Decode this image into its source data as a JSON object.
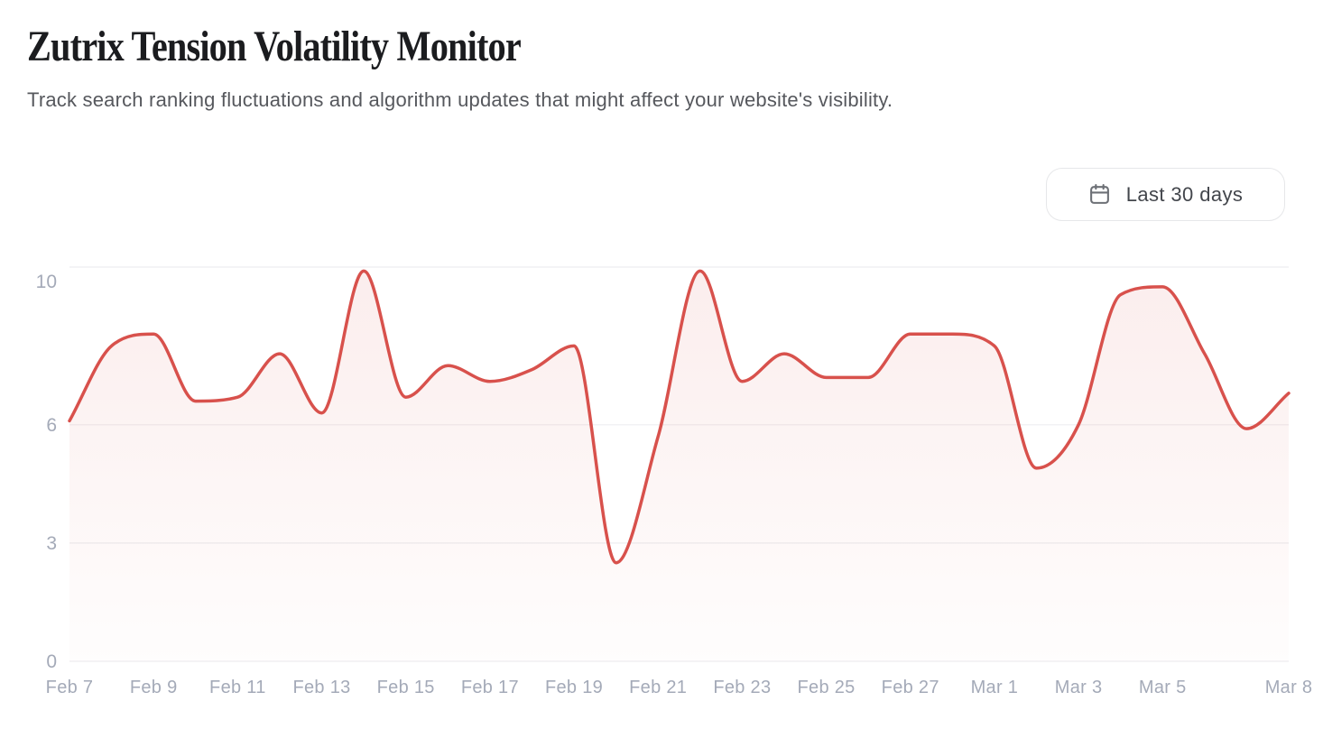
{
  "page": {
    "title": "Zutrix Tension Volatility Monitor",
    "subtitle": "Track search ranking fluctuations and algorithm updates that might affect your website's visibility."
  },
  "controls": {
    "date_range_label": "Last 30 days",
    "calendar_icon": "calendar-icon"
  },
  "chart_data": {
    "type": "line",
    "title": "",
    "x": [
      "Feb 7",
      "Feb 8",
      "Feb 9",
      "Feb 10",
      "Feb 11",
      "Feb 12",
      "Feb 13",
      "Feb 14",
      "Feb 15",
      "Feb 16",
      "Feb 17",
      "Feb 18",
      "Feb 19",
      "Feb 20",
      "Feb 21",
      "Feb 22",
      "Feb 23",
      "Feb 24",
      "Feb 25",
      "Feb 26",
      "Feb 27",
      "Feb 28",
      "Mar 1",
      "Mar 2",
      "Mar 3",
      "Mar 4",
      "Mar 5",
      "Mar 6",
      "Mar 7",
      "Mar 8"
    ],
    "series": [
      {
        "name": "Volatility",
        "values": [
          6.1,
          8.0,
          8.3,
          6.6,
          6.7,
          7.8,
          6.3,
          9.9,
          6.7,
          7.5,
          7.1,
          7.4,
          8.0,
          2.5,
          5.7,
          9.9,
          7.1,
          7.8,
          7.2,
          7.2,
          8.3,
          8.3,
          8.0,
          4.9,
          6.0,
          9.3,
          9.5,
          7.8,
          5.9,
          6.8
        ]
      }
    ],
    "x_tick_labels": [
      "Feb 7",
      "Feb 9",
      "Feb 11",
      "Feb 13",
      "Feb 15",
      "Feb 17",
      "Feb 19",
      "Feb 21",
      "Feb 23",
      "Feb 25",
      "Feb 27",
      "Mar 1",
      "Mar 3",
      "Mar 5",
      "Mar 8"
    ],
    "x_tick_indices": [
      0,
      2,
      4,
      6,
      8,
      10,
      12,
      14,
      16,
      18,
      20,
      22,
      24,
      26,
      29
    ],
    "y_ticks": [
      0,
      3,
      6,
      10
    ],
    "ylim": [
      0,
      10
    ],
    "grid": "horizontal",
    "legend": "none",
    "line_color": "#d8514c",
    "fill_top_color": "rgba(215,81,76,0.10)",
    "fill_bottom_color": "rgba(215,81,76,0.01)",
    "gridline_color": "#ededf0",
    "axis_label_color": "#a4aab8"
  }
}
